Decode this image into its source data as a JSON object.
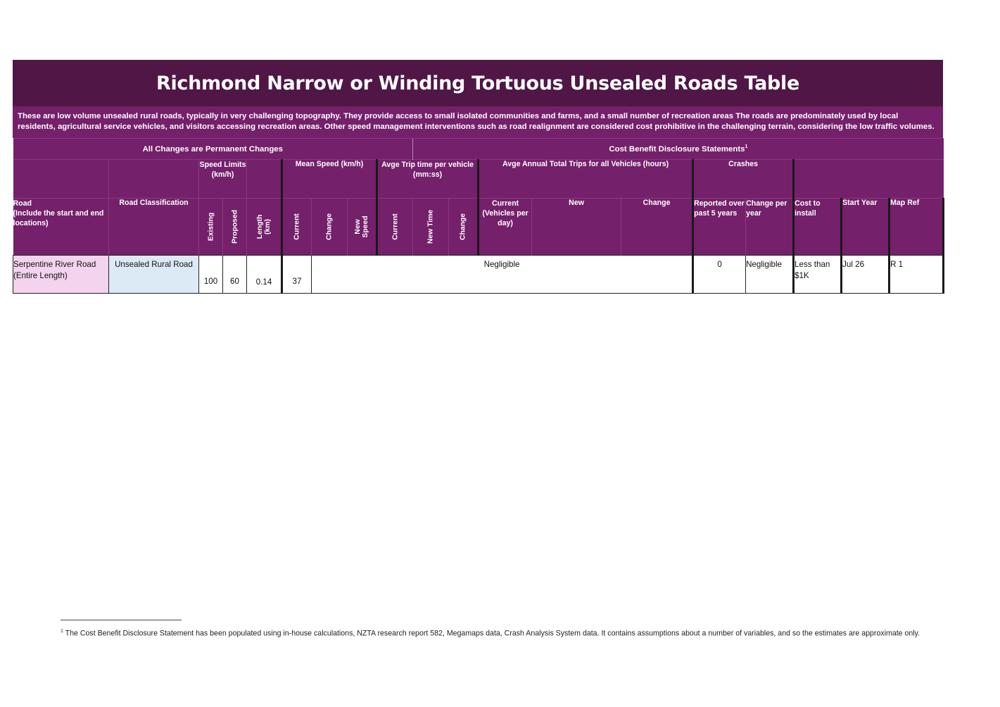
{
  "title": "Richmond Narrow or Winding Tortuous Unsealed Roads Table",
  "description": "These are low volume unsealed rural roads, typically in very challenging topography.  They provide access to small isolated communities and farms, and a small number of recreation areas The roads are predominately used by local residents, agricultural service vehicles, and visitors accessing recreation areas. Other speed management interventions such as road realignment are considered cost prohibitive in the challenging terrain, considering the low traffic volumes.",
  "sections": {
    "permanent": "All Changes are Permanent Changes",
    "cbds": "Cost Benefit Disclosure Statements",
    "cbds_sup": "1"
  },
  "groups": {
    "speed_limits": "Speed Limits (km/h)",
    "mean_speed": "Mean Speed (km/h)",
    "trip_time": "Avge Trip time per vehicle (mm:ss)",
    "annual_trips": "Avge Annual Total Trips for all Vehicles (hours)",
    "crashes": "Crashes"
  },
  "columns": {
    "road_line1": "Road",
    "road_line2": "(Include the start and end locations)",
    "road_classification": "Road Classification",
    "existing": "Existing",
    "proposed": "Proposed",
    "length_line1": "Length",
    "length_line2": "(km)",
    "mean_current": "Current",
    "mean_change": "Change",
    "new_speed_line1": "New",
    "new_speed_line2": "Speed",
    "trip_current": "Current",
    "trip_new_time": "New Time",
    "trip_change": "Change",
    "trips_current": "Current (Vehicles per day)",
    "trips_new": "New",
    "trips_change": "Change",
    "crashes_reported": "Reported over past 5 years",
    "crashes_change": "Change per year",
    "cost": "Cost to install",
    "start_year": "Start Year",
    "map_ref": "Map Ref"
  },
  "rows": [
    {
      "road": "Serpentine River Road (Entire Length)",
      "classification": "Unsealed Rural Road",
      "existing": "100",
      "proposed": "60",
      "length": "0.14",
      "mean_current": "37",
      "merged_value": "Negligible",
      "crashes_reported": "0",
      "crashes_change": "Negligible",
      "cost": "Less than $1K",
      "start_year": "Jul 26",
      "map_ref": "R 1"
    }
  ],
  "footnote": {
    "marker": "1",
    "text": "The Cost Benefit Disclosure Statement has been populated using in-house calculations, NZTA research report 582, Megamaps data, Crash Analysis System data. It contains assumptions about a number of variables, and so the estimates are approximate only."
  }
}
